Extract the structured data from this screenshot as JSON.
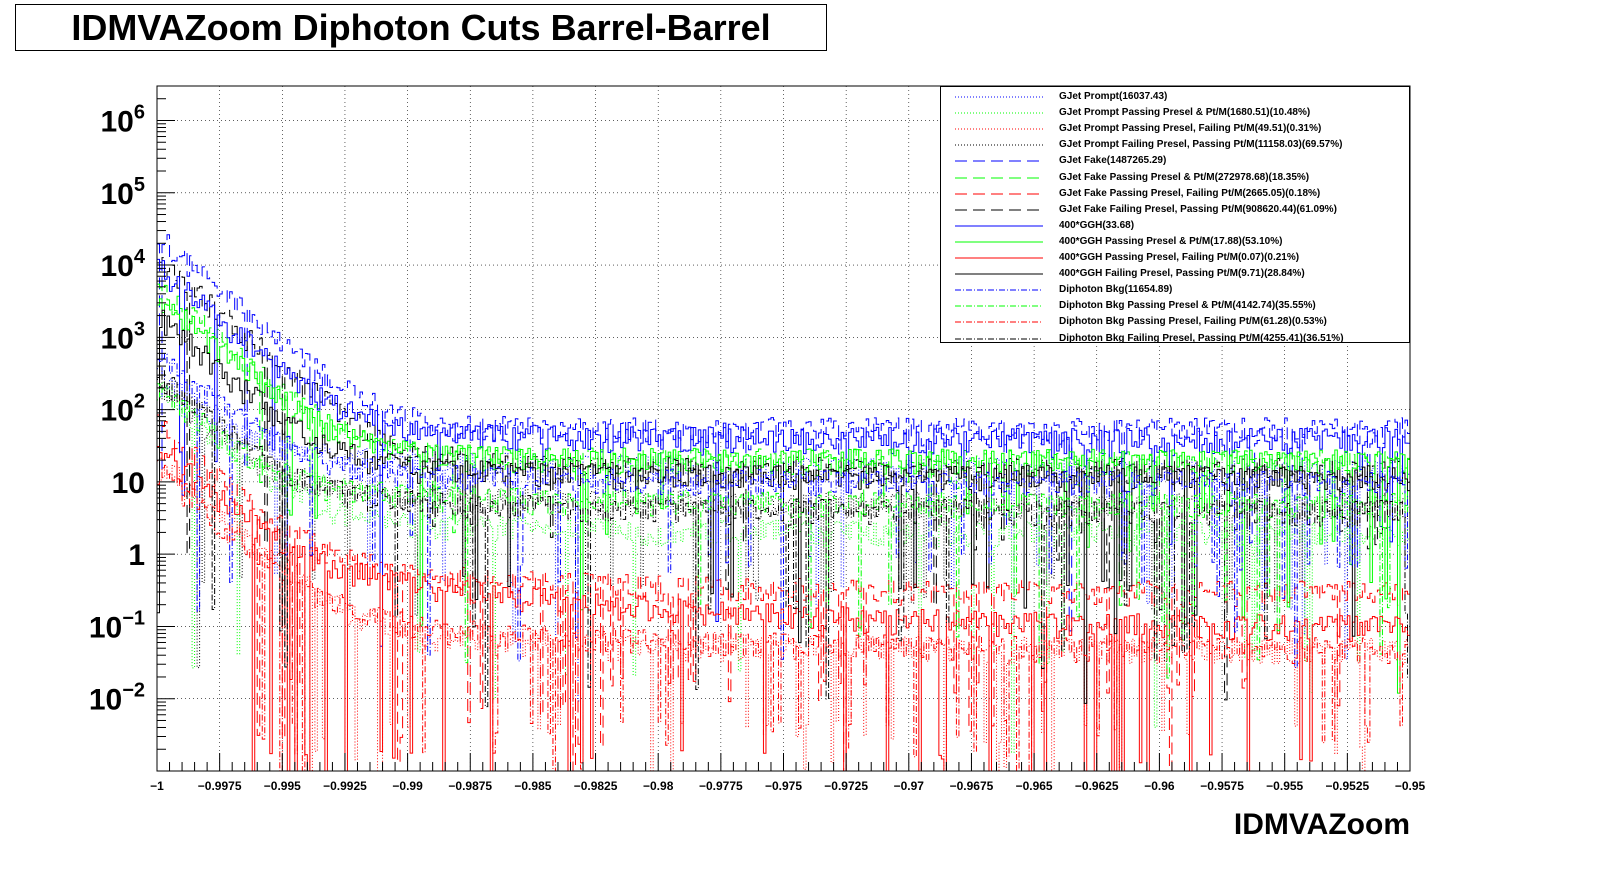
{
  "chart_data": {
    "type": "line",
    "title": "IDMVAZoom Diphoton Cuts Barrel-Barrel",
    "xlabel": "IDMVAZoom",
    "ylabel": "",
    "xlim": [
      -1,
      -0.95
    ],
    "ylim": [
      0.001,
      3000000
    ],
    "y_scale": "log",
    "grid": true,
    "legend_position": "top-right",
    "x_ticks": [
      {
        "value": -1,
        "label": "−1"
      },
      {
        "value": -0.9975,
        "label": "−0.9975"
      },
      {
        "value": -0.995,
        "label": "−0.995"
      },
      {
        "value": -0.9925,
        "label": "−0.9925"
      },
      {
        "value": -0.99,
        "label": "−0.99"
      },
      {
        "value": -0.9875,
        "label": "−0.9875"
      },
      {
        "value": -0.985,
        "label": "−0.985"
      },
      {
        "value": -0.9825,
        "label": "−0.9825"
      },
      {
        "value": -0.98,
        "label": "−0.98"
      },
      {
        "value": -0.9775,
        "label": "−0.9775"
      },
      {
        "value": -0.975,
        "label": "−0.975"
      },
      {
        "value": -0.9725,
        "label": "−0.9725"
      },
      {
        "value": -0.97,
        "label": "−0.97"
      },
      {
        "value": -0.9675,
        "label": "−0.9675"
      },
      {
        "value": -0.965,
        "label": "−0.965"
      },
      {
        "value": -0.9625,
        "label": "−0.9625"
      },
      {
        "value": -0.96,
        "label": "−0.96"
      },
      {
        "value": -0.9575,
        "label": "−0.9575"
      },
      {
        "value": -0.955,
        "label": "−0.955"
      },
      {
        "value": -0.9525,
        "label": "−0.9525"
      },
      {
        "value": -0.95,
        "label": "−0.95"
      }
    ],
    "y_ticks": [
      {
        "value": 0.01,
        "base": "10",
        "exp": "−2"
      },
      {
        "value": 0.1,
        "base": "10",
        "exp": "−1"
      },
      {
        "value": 1,
        "base": "1",
        "exp": ""
      },
      {
        "value": 10,
        "base": "10",
        "exp": ""
      },
      {
        "value": 100,
        "base": "10",
        "exp": "2"
      },
      {
        "value": 1000,
        "base": "10",
        "exp": "3"
      },
      {
        "value": 10000,
        "base": "10",
        "exp": "4"
      },
      {
        "value": 100000,
        "base": "10",
        "exp": "5"
      },
      {
        "value": 1000000,
        "base": "10",
        "exp": "6"
      }
    ],
    "bins": 500,
    "series": [
      {
        "name": "GJet Prompt(16037.43)",
        "color": "#0000ff",
        "dash": "1,2",
        "values": {
          "y_start": 300,
          "y_end": 15,
          "y_sparse_end": 30,
          "min_tail": 1
        }
      },
      {
        "name": "GJet Prompt Passing Presel & Pt/M(1680.51)(10.48%)",
        "color": "#00ff00",
        "dash": "1,2",
        "values": {
          "y_start": 200,
          "y_end": 2,
          "y_sparse_end": 4,
          "min_tail": 0.05
        }
      },
      {
        "name": "GJet Prompt Passing Presel, Failing Pt/M(49.51)(0.31%)",
        "color": "#ff0000",
        "dash": "1,2",
        "values": {
          "y_start": 20,
          "y_end": 0.05,
          "y_sparse_end": 0.1,
          "min_tail": 0.005
        }
      },
      {
        "name": "GJet Prompt Failing Presel, Passing Pt/M(11158.03)(69.57%)",
        "color": "#000000",
        "dash": "1,2",
        "values": {
          "y_start": 200,
          "y_end": 5,
          "y_sparse_end": 10,
          "min_tail": 0.5
        }
      },
      {
        "name": "GJet Fake(1487265.29)",
        "color": "#0000ff",
        "dash": "12,6",
        "values": {
          "y_start": 25000,
          "y_end": 55,
          "y_sparse_end": 70,
          "min_tail": 40
        }
      },
      {
        "name": "GJet Fake Passing Presel & Pt/M(272978.68)(18.35%)",
        "color": "#00ff00",
        "dash": "12,6",
        "values": {
          "y_start": 5000,
          "y_end": 20,
          "y_sparse_end": 30,
          "min_tail": 10
        }
      },
      {
        "name": "GJet Fake Passing Presel, Failing Pt/M(2665.05)(0.18%)",
        "color": "#ff0000",
        "dash": "12,6",
        "values": {
          "y_start": 60,
          "y_end": 0.3,
          "y_sparse_end": 1,
          "min_tail": 0.02
        }
      },
      {
        "name": "GJet Fake Failing Presel, Passing Pt/M(908620.44)(61.09%)",
        "color": "#000000",
        "dash": "12,6",
        "values": {
          "y_start": 12000,
          "y_end": 15,
          "y_sparse_end": 30,
          "min_tail": 3
        }
      },
      {
        "name": "400*GGH(33.68)",
        "color": "#0000ff",
        "dash": "",
        "values": {
          "y_start": 10000,
          "y_end": 40,
          "y_sparse_end": 60,
          "min_tail": 30
        }
      },
      {
        "name": "400*GGH Passing Presel & Pt/M(17.88)(53.10%)",
        "color": "#00ff00",
        "dash": "",
        "values": {
          "y_start": 4000,
          "y_end": 20,
          "y_sparse_end": 30,
          "min_tail": 5
        }
      },
      {
        "name": "400*GGH Passing Presel, Failing Pt/M(0.07)(0.21%)",
        "color": "#ff0000",
        "dash": "",
        "values": {
          "y_start": 30,
          "y_end": 0.1,
          "y_sparse_end": 1,
          "min_tail": 0.002
        }
      },
      {
        "name": "400*GGH Failing Presel, Passing Pt/M(9.71)(28.84%)",
        "color": "#000000",
        "dash": "",
        "values": {
          "y_start": 2000,
          "y_end": 12,
          "y_sparse_end": 20,
          "min_tail": 0.5
        }
      },
      {
        "name": "Diphoton Bkg(11654.89)",
        "color": "#0000ff",
        "dash": "6,2,1,2",
        "values": {
          "y_start": 600,
          "y_end": 10,
          "y_sparse_end": 20,
          "min_tail": 1
        }
      },
      {
        "name": "Diphoton Bkg Passing Presel & Pt/M(4142.74)(35.55%)",
        "color": "#00ff00",
        "dash": "6,2,1,2",
        "values": {
          "y_start": 200,
          "y_end": 5,
          "y_sparse_end": 10,
          "min_tail": 0.3
        }
      },
      {
        "name": "Diphoton Bkg Passing Presel, Failing Pt/M(61.28)(0.53%)",
        "color": "#ff0000",
        "dash": "6,2,1,2",
        "values": {
          "y_start": 15,
          "y_end": 0.05,
          "y_sparse_end": 0.2,
          "min_tail": 0.005
        }
      },
      {
        "name": "Diphoton Bkg Failing Presel, Passing Pt/M(4255.41)(36.51%)",
        "color": "#000000",
        "dash": "6,2,1,2",
        "values": {
          "y_start": 300,
          "y_end": 4,
          "y_sparse_end": 8,
          "min_tail": 0.2
        }
      }
    ]
  }
}
